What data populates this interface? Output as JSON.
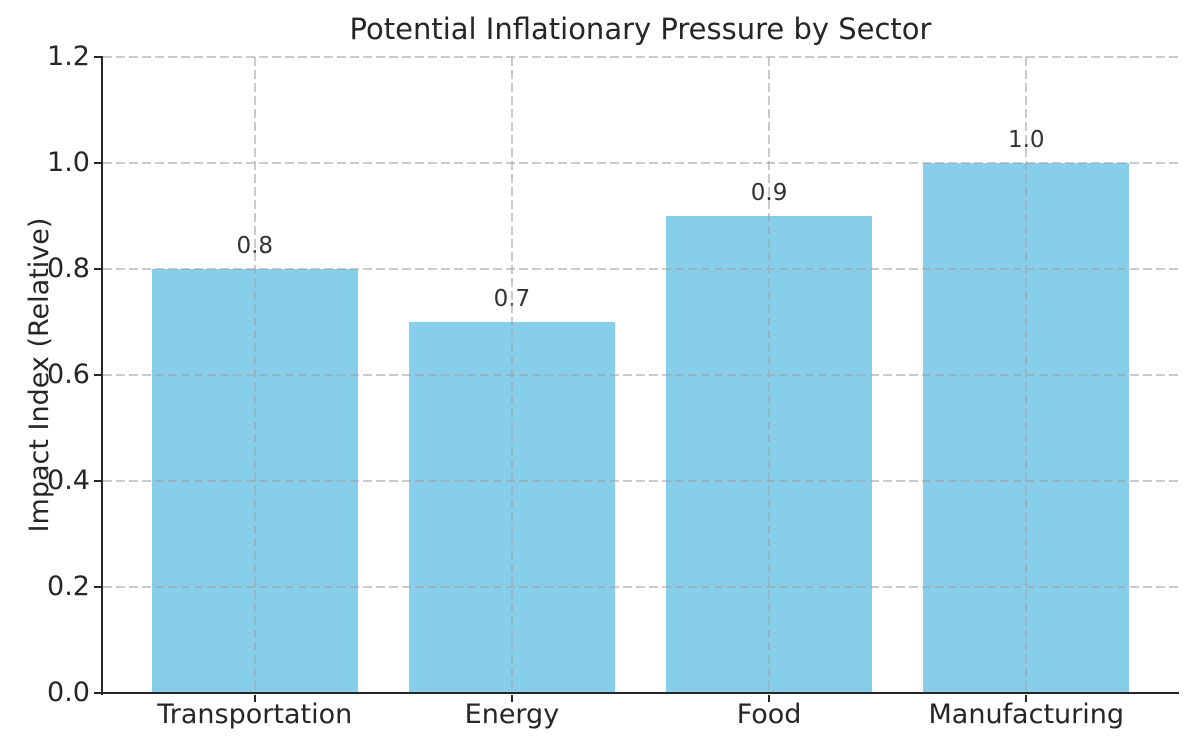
{
  "chart_data": {
    "type": "bar",
    "title": "Potential Inflationary Pressure by Sector",
    "xlabel": "",
    "ylabel": "Impact Index (Relative)",
    "categories": [
      "Transportation",
      "Energy",
      "Food",
      "Manufacturing"
    ],
    "values": [
      0.8,
      0.7,
      0.9,
      1.0
    ],
    "bar_labels": [
      "0.8",
      "0.7",
      "0.9",
      "1.0"
    ],
    "ylim": [
      0.0,
      1.2
    ],
    "yticks": [
      0.0,
      0.2,
      0.4,
      0.6,
      0.8,
      1.0,
      1.2
    ],
    "ytick_labels": [
      "0.0",
      "0.2",
      "0.4",
      "0.6",
      "0.8",
      "1.0",
      "1.2"
    ],
    "legend": "none",
    "grid": "dashed, horizontal and vertical, drawn over bars",
    "bar_color": "#87CEEB",
    "grid_color": "#a0a0a0",
    "spine_color": "#262626",
    "text_color": "#262626",
    "background_color": "#ffffff"
  }
}
